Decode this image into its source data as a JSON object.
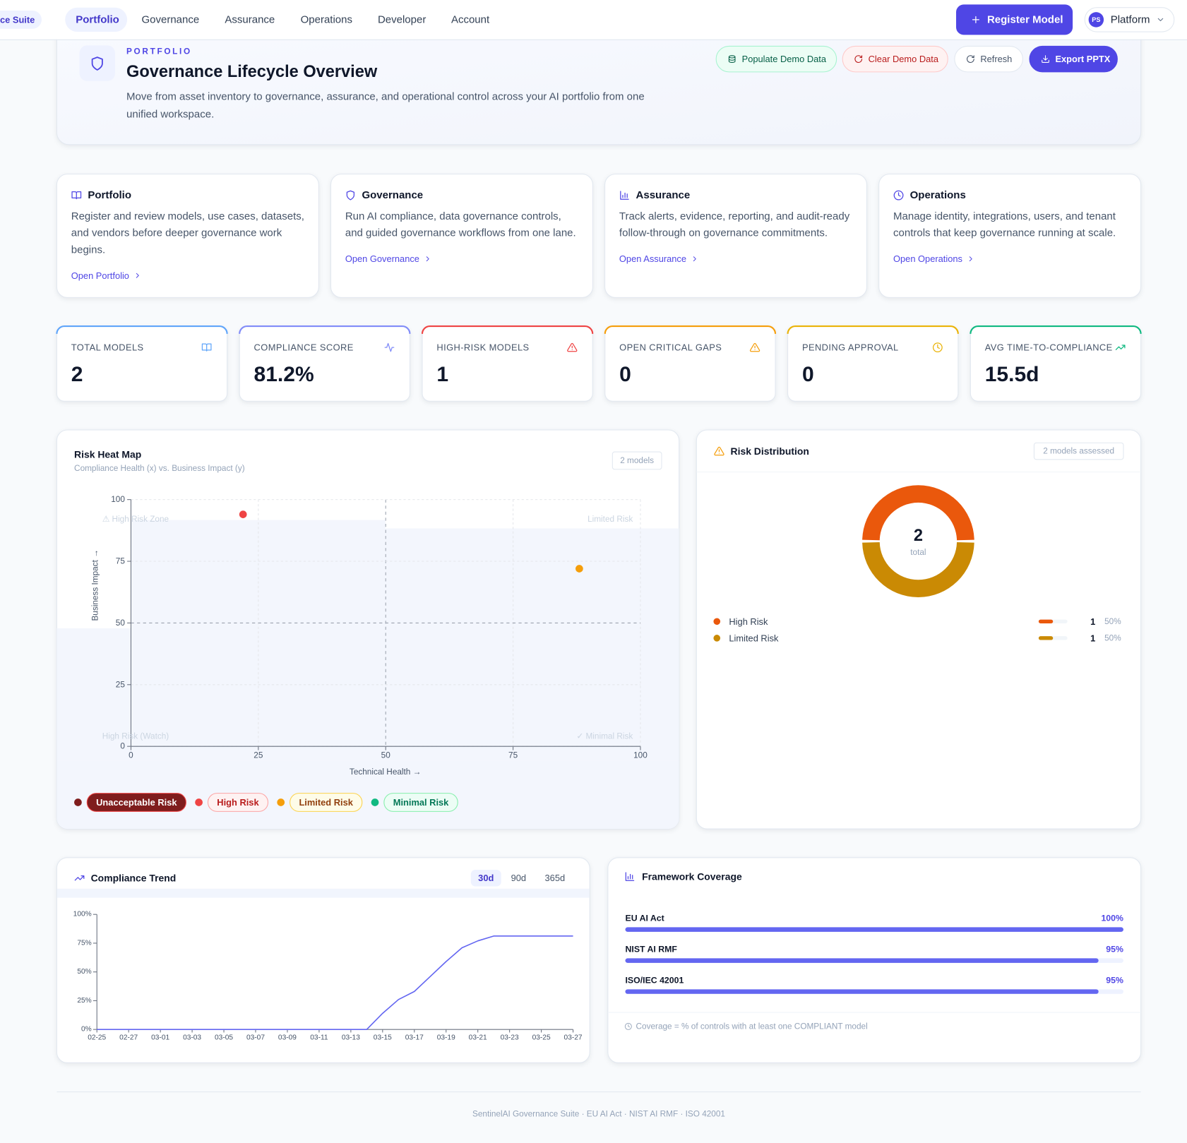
{
  "nav": {
    "brand": "ce Suite",
    "items": [
      "Portfolio",
      "Governance",
      "Assurance",
      "Operations",
      "Developer",
      "Account"
    ],
    "cta": "Register Model",
    "avatar": "PS",
    "workspace": "Platform"
  },
  "header": {
    "eyebrow": "PORTFOLIO",
    "title": "Governance Lifecycle Overview",
    "description": [
      "Move from asset inventory to governance, assurance, and operational control across your AI portfolio from one",
      "unified workspace."
    ],
    "buttons": [
      "Populate Demo Data",
      "Clear Demo Data",
      "Refresh",
      "Export PPTX"
    ]
  },
  "lanes": [
    {
      "title": "Portfolio",
      "text": [
        "Register and review models, use cases, datasets,",
        "and vendors before deeper governance work",
        "begins."
      ],
      "link": "Open Portfolio"
    },
    {
      "title": "Governance",
      "text": [
        "Run AI compliance, data governance controls,",
        "and guided governance workflows from one lane."
      ],
      "link": "Open Governance"
    },
    {
      "title": "Assurance",
      "text": [
        "Track alerts, evidence, reporting, and audit-ready",
        "follow-through on governance commitments."
      ],
      "link": "Open Assurance"
    },
    {
      "title": "Operations",
      "text": [
        "Manage identity, integrations, users, and tenant",
        "controls that keep governance running at scale."
      ],
      "link": "Open Operations"
    }
  ],
  "kpis": [
    {
      "label": "TOTAL MODELS",
      "value": "2"
    },
    {
      "label": "COMPLIANCE SCORE",
      "value": "81.2%"
    },
    {
      "label": "HIGH-RISK MODELS",
      "value": "1"
    },
    {
      "label": "OPEN CRITICAL GAPS",
      "value": "0"
    },
    {
      "label": "PENDING APPROVAL",
      "value": "0"
    },
    {
      "label": "AVG TIME-TO-COMPLIANCE",
      "value": "15.5d"
    }
  ],
  "chart_data": [
    {
      "type": "scatter",
      "title": "Risk Heat Map",
      "subtitle": "Compliance Health (x) vs. Business Impact (y)",
      "badge": "2 models",
      "x_label": "Technical Health →",
      "y_label": "Business Impact →",
      "x": [
        22,
        88
      ],
      "values": [
        94,
        72
      ],
      "colors": [
        "#ef4444",
        "#f59e0b"
      ],
      "xlim": [
        0,
        100
      ],
      "ylim": [
        0,
        100
      ],
      "xticks": [
        0,
        25,
        50,
        75,
        100
      ],
      "yticks": [
        0,
        25,
        50,
        75,
        100
      ],
      "grid": true,
      "zones": [
        "⚠ High Risk Zone",
        "Limited Risk",
        "High Risk (Watch)",
        "✓ Minimal Risk"
      ],
      "risk_levels": [
        {
          "name": "Unacceptable Risk",
          "color": "#7f1d1d"
        },
        {
          "name": "High Risk",
          "color": "#ef4444"
        },
        {
          "name": "Limited Risk",
          "color": "#f59e0b"
        },
        {
          "name": "Minimal Risk",
          "color": "#10b981"
        }
      ]
    },
    {
      "type": "pie",
      "title": "Risk Distribution",
      "badge": "2 models assessed",
      "total": 2,
      "total_label": "total",
      "categories": [
        "High Risk",
        "Limited Risk"
      ],
      "values": [
        1,
        1
      ],
      "colors": [
        "#ea580c",
        "#ca8a04"
      ],
      "shares": [
        50,
        50
      ],
      "share_labels": [
        "50%",
        "50%"
      ]
    },
    {
      "type": "line",
      "title": "Compliance Trend",
      "ranges": [
        "30d",
        "90d",
        "365d"
      ],
      "color": "#6366f1",
      "categories": [
        "02-25",
        null,
        "02-27",
        null,
        "03-01",
        null,
        "03-03",
        null,
        "03-05",
        null,
        "03-07",
        null,
        "03-09",
        null,
        "03-11",
        null,
        "03-13",
        null,
        "03-15",
        null,
        "03-17",
        null,
        "03-19",
        null,
        "03-21",
        null,
        "03-23",
        null,
        "03-25",
        null,
        "03-27"
      ],
      "values": [
        0,
        0,
        0,
        0,
        0,
        0,
        0,
        0,
        0,
        0,
        0,
        0,
        0,
        0,
        0,
        0,
        0,
        0,
        14,
        26,
        33,
        46,
        59,
        71,
        77,
        81.2,
        81.2,
        81.2,
        81.2,
        81.2,
        81.2
      ],
      "ylim": [
        0,
        100
      ],
      "yticks": [
        {
          "value": 0,
          "label": "0%"
        },
        {
          "value": 25,
          "label": "25%"
        },
        {
          "value": 50,
          "label": "50%"
        },
        {
          "value": 75,
          "label": "75%"
        },
        {
          "value": 100,
          "label": "100%"
        }
      ]
    },
    {
      "type": "bar",
      "title": "Framework Coverage",
      "categories": [
        "EU AI Act",
        "NIST AI RMF",
        "ISO/IEC 42001"
      ],
      "values": [
        100,
        95,
        95
      ],
      "value_labels": [
        "100%",
        "95%",
        "95%"
      ],
      "xlim": [
        0,
        100
      ],
      "color": "#6366f1",
      "note": "Coverage = % of controls with at least one COMPLIANT model"
    }
  ],
  "footer": "SentinelAI Governance Suite · EU AI Act · NIST AI RMF · ISO 42001"
}
